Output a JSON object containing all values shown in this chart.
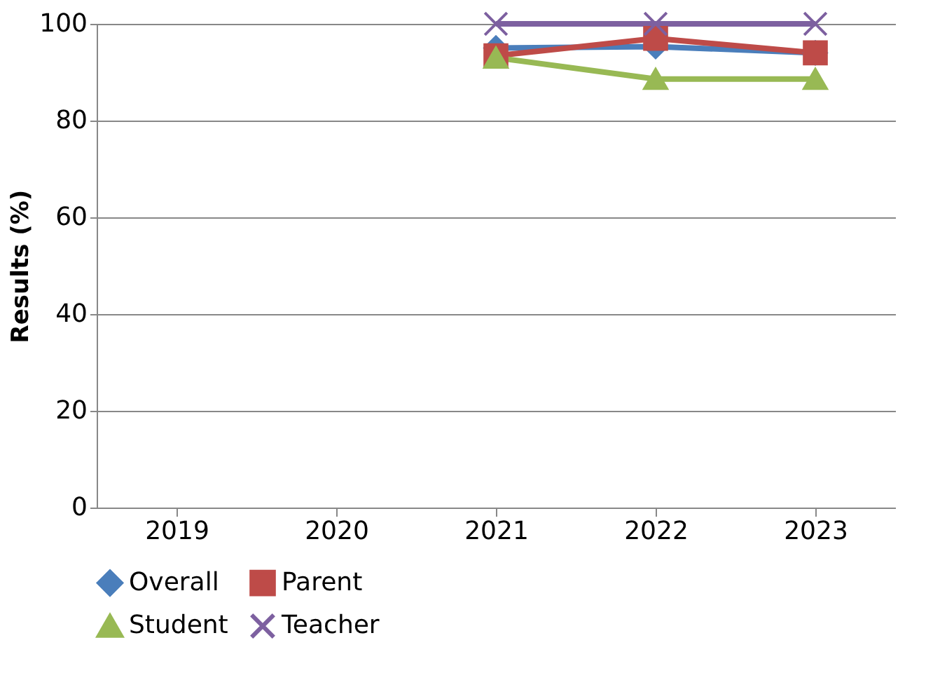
{
  "chart_data": {
    "type": "line",
    "ylabel": "Results (%)",
    "categories": [
      "2019",
      "2020",
      "2021",
      "2022",
      "2023"
    ],
    "ylim": [
      0,
      100
    ],
    "yticks": [
      0,
      20,
      40,
      60,
      80,
      100
    ],
    "grid": "y",
    "legend": "bottom",
    "series": [
      {
        "name": "Overall",
        "color": "#4a7ebb",
        "marker": "diamond",
        "values": [
          null,
          null,
          95,
          95.3,
          94
        ]
      },
      {
        "name": "Parent",
        "color": "#be4b48",
        "marker": "square",
        "values": [
          null,
          null,
          93.4,
          97,
          94
        ]
      },
      {
        "name": "Student",
        "color": "#98b954",
        "marker": "triangle",
        "values": [
          null,
          null,
          93,
          88.6,
          88.6
        ]
      },
      {
        "name": "Teacher",
        "color": "#7d60a0",
        "marker": "cross",
        "values": [
          null,
          null,
          100,
          100,
          100
        ]
      }
    ]
  }
}
